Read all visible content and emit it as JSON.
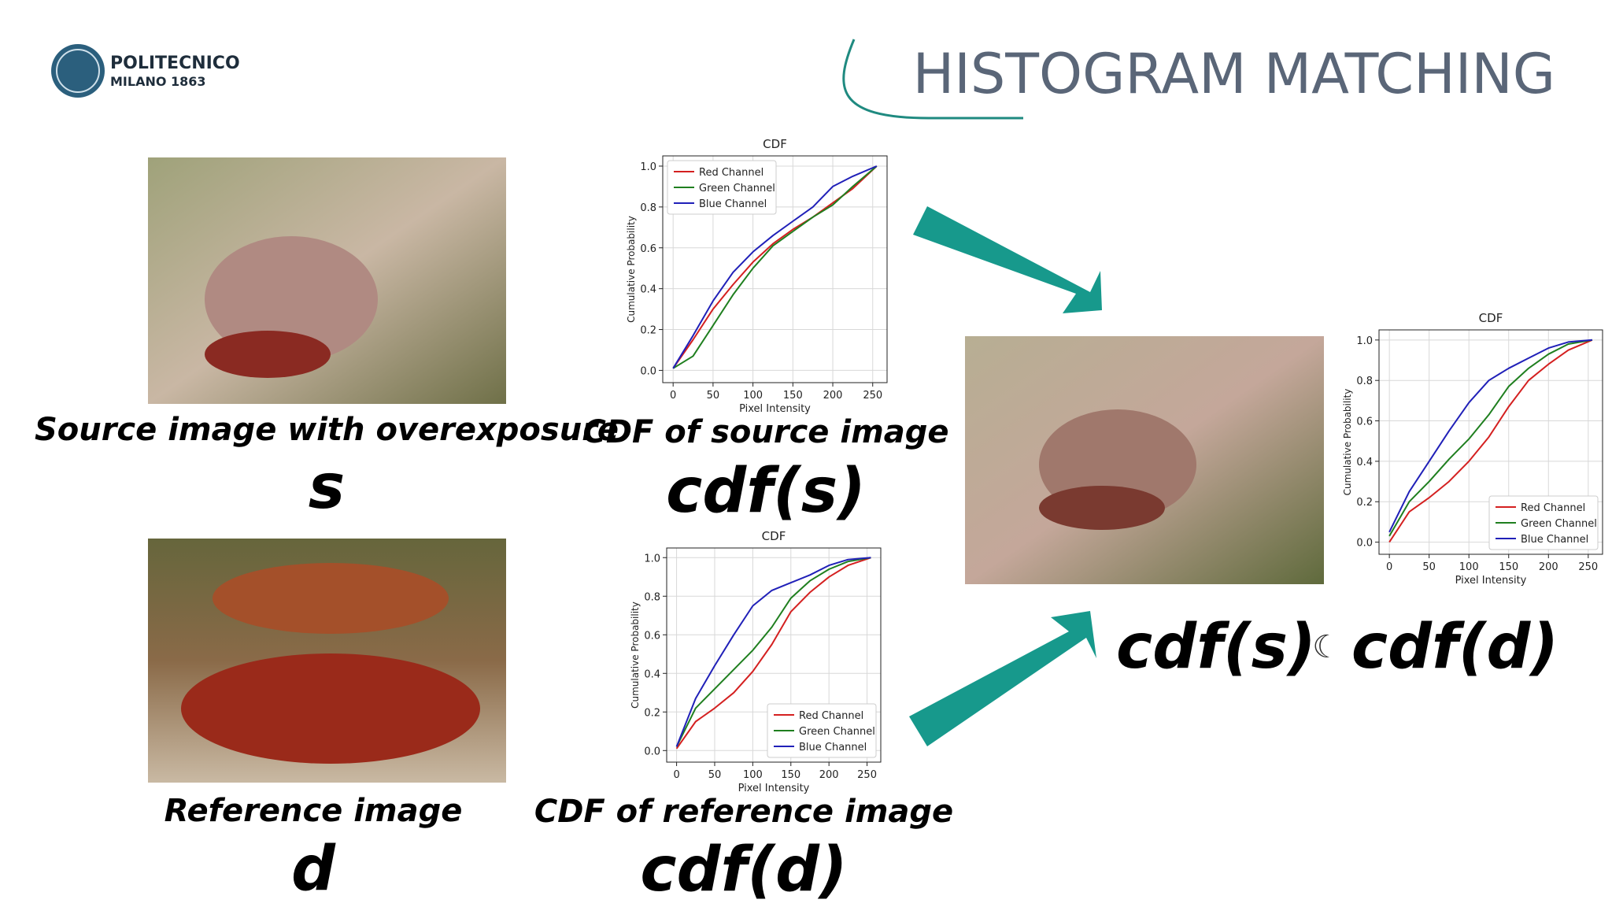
{
  "header": {
    "logo_line1": "POLITECNICO",
    "logo_line2": "MILANO 1863",
    "title": "HISTOGRAM MATCHING"
  },
  "captions": {
    "source": "Source image with overexposure",
    "source_symbol": "s",
    "source_cdf": "CDF of source image",
    "source_cdf_symbol": "cdf(s)",
    "reference": "Reference image",
    "reference_symbol": "d",
    "reference_cdf": "CDF of reference image",
    "reference_cdf_symbol": "cdf(d)",
    "result_left": "cdf(s)",
    "result_operator": "☾",
    "result_right": "cdf(d)"
  },
  "chart_data": [
    {
      "type": "line",
      "title": "CDF",
      "x_label": "Pixel Intensity",
      "y_label": "Cumulative Probability",
      "x": [
        0,
        25,
        50,
        75,
        100,
        125,
        150,
        175,
        200,
        225,
        255
      ],
      "series": [
        {
          "name": "Red Channel",
          "color": "#d42020",
          "values": [
            0.01,
            0.15,
            0.3,
            0.42,
            0.53,
            0.62,
            0.69,
            0.75,
            0.82,
            0.89,
            1.0
          ]
        },
        {
          "name": "Green Channel",
          "color": "#1f7f1f",
          "values": [
            0.01,
            0.07,
            0.22,
            0.37,
            0.5,
            0.61,
            0.68,
            0.75,
            0.81,
            0.9,
            1.0
          ]
        },
        {
          "name": "Blue Channel",
          "color": "#2020b8",
          "values": [
            0.01,
            0.17,
            0.34,
            0.48,
            0.58,
            0.66,
            0.73,
            0.8,
            0.9,
            0.95,
            1.0
          ]
        }
      ],
      "xlim": [
        -13,
        268
      ],
      "ylim": [
        -0.06,
        1.05
      ],
      "xticks": [
        0,
        50,
        100,
        150,
        200,
        250
      ],
      "yticks": [
        {
          "value": 0,
          "label": "0.0"
        },
        0.2,
        0.4,
        0.6,
        0.8,
        {
          "value": 1,
          "label": "1.0"
        }
      ],
      "grid": true,
      "legend": "upper left"
    },
    {
      "type": "line",
      "title": "CDF",
      "x_label": "Pixel Intensity",
      "y_label": "Cumulative Probability",
      "x": [
        0,
        25,
        50,
        75,
        100,
        125,
        150,
        175,
        200,
        225,
        255
      ],
      "series": [
        {
          "name": "Red Channel",
          "color": "#d42020",
          "values": [
            0.01,
            0.15,
            0.22,
            0.3,
            0.41,
            0.55,
            0.72,
            0.82,
            0.9,
            0.96,
            1.0
          ]
        },
        {
          "name": "Green Channel",
          "color": "#1f7f1f",
          "values": [
            0.02,
            0.22,
            0.32,
            0.42,
            0.52,
            0.64,
            0.79,
            0.88,
            0.94,
            0.98,
            1.0
          ]
        },
        {
          "name": "Blue Channel",
          "color": "#2020b8",
          "values": [
            0.02,
            0.27,
            0.44,
            0.6,
            0.75,
            0.83,
            0.87,
            0.91,
            0.96,
            0.99,
            1.0
          ]
        }
      ],
      "xlim": [
        -13,
        268
      ],
      "ylim": [
        -0.06,
        1.05
      ],
      "xticks": [
        0,
        50,
        100,
        150,
        200,
        250
      ],
      "yticks": [
        {
          "value": 0,
          "label": "0.0"
        },
        0.2,
        0.4,
        0.6,
        0.8,
        {
          "value": 1,
          "label": "1.0"
        }
      ],
      "grid": true,
      "legend": "lower right"
    },
    {
      "type": "line",
      "title": "CDF",
      "x_label": "Pixel Intensity",
      "y_label": "Cumulative Probability",
      "x": [
        0,
        25,
        50,
        75,
        100,
        125,
        150,
        175,
        200,
        225,
        255
      ],
      "series": [
        {
          "name": "Red Channel",
          "color": "#d42020",
          "values": [
            0.0,
            0.15,
            0.22,
            0.3,
            0.4,
            0.52,
            0.67,
            0.8,
            0.88,
            0.95,
            1.0
          ]
        },
        {
          "name": "Green Channel",
          "color": "#1f7f1f",
          "values": [
            0.03,
            0.2,
            0.3,
            0.41,
            0.51,
            0.63,
            0.77,
            0.86,
            0.93,
            0.98,
            1.0
          ]
        },
        {
          "name": "Blue Channel",
          "color": "#2020b8",
          "values": [
            0.05,
            0.25,
            0.4,
            0.55,
            0.69,
            0.8,
            0.86,
            0.91,
            0.96,
            0.99,
            1.0
          ]
        }
      ],
      "xlim": [
        -13,
        268
      ],
      "ylim": [
        -0.06,
        1.05
      ],
      "xticks": [
        0,
        50,
        100,
        150,
        200,
        250
      ],
      "yticks": [
        {
          "value": 0,
          "label": "0.0"
        },
        0.2,
        0.4,
        0.6,
        0.8,
        {
          "value": 1,
          "label": "1.0"
        }
      ],
      "grid": true,
      "legend": "lower right"
    }
  ]
}
